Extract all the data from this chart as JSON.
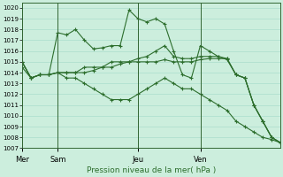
{
  "title": "Pression niveau de la mer( hPa )",
  "background_color": "#cceedd",
  "line_color": "#2d6e2d",
  "ylim": [
    1007,
    1020.5
  ],
  "yticks": [
    1007,
    1008,
    1009,
    1010,
    1011,
    1012,
    1013,
    1014,
    1015,
    1016,
    1017,
    1018,
    1019,
    1020
  ],
  "day_labels": [
    "Mer",
    "Sam",
    "Jeu",
    "Ven"
  ],
  "day_positions": [
    0,
    4,
    13,
    20
  ],
  "vline_positions": [
    0,
    4,
    13,
    20
  ],
  "series": [
    [
      1015.0,
      1013.5,
      1013.8,
      1013.8,
      1017.7,
      1017.5,
      1018.0,
      1017.0,
      1016.2,
      1016.3,
      1016.5,
      1016.5,
      1019.8,
      1019.0,
      1018.7,
      1019.0,
      1018.5,
      1016.0,
      1013.8,
      1013.5,
      1016.5,
      1016.0,
      1015.5,
      1015.2,
      1013.8,
      1013.5,
      1011.0,
      1009.5,
      1008.0,
      1007.5
    ],
    [
      1015.0,
      1013.5,
      1013.8,
      1013.8,
      1014.0,
      1014.0,
      1014.0,
      1014.5,
      1014.5,
      1014.5,
      1015.0,
      1015.0,
      1015.0,
      1015.3,
      1015.5,
      1016.0,
      1016.5,
      1015.5,
      1015.3,
      1015.3,
      1015.5,
      1015.5,
      1015.5,
      1015.3,
      1013.8,
      1013.5,
      1011.0,
      1009.5,
      1008.0,
      1007.5
    ],
    [
      1015.0,
      1013.5,
      1013.8,
      1013.8,
      1014.0,
      1014.0,
      1014.0,
      1014.0,
      1014.2,
      1014.5,
      1014.5,
      1014.8,
      1015.0,
      1015.0,
      1015.0,
      1015.0,
      1015.2,
      1015.0,
      1015.0,
      1015.0,
      1015.2,
      1015.3,
      1015.3,
      1015.3,
      1013.8,
      1013.5,
      1011.0,
      1009.5,
      1008.0,
      1007.5
    ],
    [
      1014.5,
      1013.5,
      1013.8,
      1013.8,
      1014.0,
      1013.5,
      1013.5,
      1013.0,
      1012.5,
      1012.0,
      1011.5,
      1011.5,
      1011.5,
      1012.0,
      1012.5,
      1013.0,
      1013.5,
      1013.0,
      1012.5,
      1012.5,
      1012.0,
      1011.5,
      1011.0,
      1010.5,
      1009.5,
      1009.0,
      1008.5,
      1008.0,
      1007.8,
      1007.5
    ]
  ],
  "n_points": 30,
  "x_range": [
    0,
    29
  ]
}
